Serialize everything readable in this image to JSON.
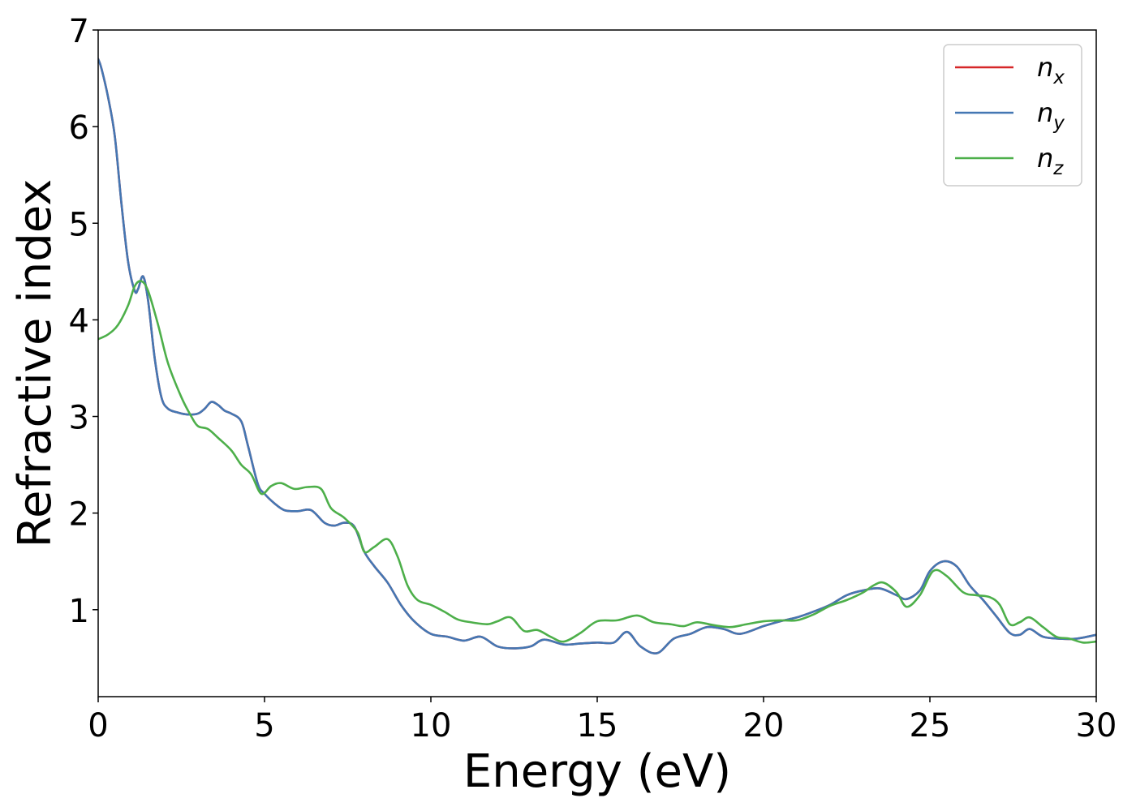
{
  "chart_data": {
    "type": "line",
    "xlabel": "Energy (eV)",
    "ylabel": "Refractive index",
    "xlim": [
      0,
      30
    ],
    "ylim": [
      0.1,
      7
    ],
    "xticks": [
      0,
      5,
      10,
      15,
      20,
      25,
      30
    ],
    "yticks": [
      1,
      2,
      3,
      4,
      5,
      6,
      7
    ],
    "grid": false,
    "legend_position": "top-right",
    "series": [
      {
        "name": "n_x",
        "label_base": "n",
        "label_sub": "x",
        "color": "#d62728",
        "x": [
          0,
          0.1,
          0.3,
          0.5,
          0.7,
          0.9,
          1.1,
          1.2,
          1.35,
          1.5,
          1.7,
          1.9,
          2.1,
          2.4,
          2.7,
          3.0,
          3.2,
          3.4,
          3.6,
          3.8,
          4.0,
          4.3,
          4.5,
          4.8,
          5.0,
          5.3,
          5.6,
          6.0,
          6.4,
          6.8,
          7.1,
          7.4,
          7.7,
          8.0,
          8.3,
          8.7,
          9.1,
          9.5,
          10.0,
          10.5,
          11.0,
          11.5,
          12.0,
          12.5,
          13.0,
          13.4,
          14.0,
          14.5,
          15.0,
          15.5,
          15.9,
          16.3,
          16.8,
          17.3,
          17.8,
          18.3,
          18.8,
          19.3,
          20.0,
          20.5,
          21.0,
          21.5,
          22.0,
          22.5,
          23.0,
          23.5,
          24.0,
          24.3,
          24.7,
          25.0,
          25.4,
          25.8,
          26.2,
          26.6,
          27.0,
          27.4,
          27.7,
          28.0,
          28.4,
          28.9,
          29.4,
          30.0
        ],
        "values": [
          6.7,
          6.6,
          6.3,
          5.9,
          5.2,
          4.6,
          4.3,
          4.32,
          4.45,
          4.2,
          3.6,
          3.2,
          3.08,
          3.04,
          3.02,
          3.03,
          3.08,
          3.15,
          3.12,
          3.06,
          3.03,
          2.95,
          2.7,
          2.3,
          2.2,
          2.1,
          2.03,
          2.02,
          2.03,
          1.9,
          1.87,
          1.9,
          1.86,
          1.6,
          1.45,
          1.28,
          1.05,
          0.88,
          0.75,
          0.72,
          0.68,
          0.72,
          0.62,
          0.6,
          0.62,
          0.69,
          0.64,
          0.65,
          0.66,
          0.66,
          0.77,
          0.62,
          0.55,
          0.7,
          0.75,
          0.82,
          0.8,
          0.75,
          0.83,
          0.88,
          0.92,
          0.98,
          1.05,
          1.15,
          1.2,
          1.22,
          1.15,
          1.11,
          1.2,
          1.4,
          1.5,
          1.45,
          1.25,
          1.1,
          0.93,
          0.76,
          0.74,
          0.8,
          0.72,
          0.7,
          0.7,
          0.74
        ]
      },
      {
        "name": "n_y",
        "label_base": "n",
        "label_sub": "y",
        "color": "#4477b3",
        "x": [
          0,
          0.1,
          0.3,
          0.5,
          0.7,
          0.9,
          1.1,
          1.2,
          1.35,
          1.5,
          1.7,
          1.9,
          2.1,
          2.4,
          2.7,
          3.0,
          3.2,
          3.4,
          3.6,
          3.8,
          4.0,
          4.3,
          4.5,
          4.8,
          5.0,
          5.3,
          5.6,
          6.0,
          6.4,
          6.8,
          7.1,
          7.4,
          7.7,
          8.0,
          8.3,
          8.7,
          9.1,
          9.5,
          10.0,
          10.5,
          11.0,
          11.5,
          12.0,
          12.5,
          13.0,
          13.4,
          14.0,
          14.5,
          15.0,
          15.5,
          15.9,
          16.3,
          16.8,
          17.3,
          17.8,
          18.3,
          18.8,
          19.3,
          20.0,
          20.5,
          21.0,
          21.5,
          22.0,
          22.5,
          23.0,
          23.5,
          24.0,
          24.3,
          24.7,
          25.0,
          25.4,
          25.8,
          26.2,
          26.6,
          27.0,
          27.4,
          27.7,
          28.0,
          28.4,
          28.9,
          29.4,
          30.0
        ],
        "values": [
          6.7,
          6.6,
          6.3,
          5.9,
          5.2,
          4.6,
          4.3,
          4.32,
          4.45,
          4.2,
          3.6,
          3.2,
          3.08,
          3.04,
          3.02,
          3.03,
          3.08,
          3.15,
          3.12,
          3.06,
          3.03,
          2.95,
          2.7,
          2.3,
          2.2,
          2.1,
          2.03,
          2.02,
          2.03,
          1.9,
          1.87,
          1.9,
          1.86,
          1.6,
          1.45,
          1.28,
          1.05,
          0.88,
          0.75,
          0.72,
          0.68,
          0.72,
          0.62,
          0.6,
          0.62,
          0.69,
          0.64,
          0.65,
          0.66,
          0.66,
          0.77,
          0.62,
          0.55,
          0.7,
          0.75,
          0.82,
          0.8,
          0.75,
          0.83,
          0.88,
          0.92,
          0.98,
          1.05,
          1.15,
          1.2,
          1.22,
          1.15,
          1.11,
          1.2,
          1.4,
          1.5,
          1.45,
          1.25,
          1.1,
          0.93,
          0.76,
          0.74,
          0.8,
          0.72,
          0.7,
          0.7,
          0.74
        ]
      },
      {
        "name": "n_z",
        "label_base": "n",
        "label_sub": "z",
        "color": "#4daf4a",
        "x": [
          0,
          0.3,
          0.6,
          0.9,
          1.1,
          1.3,
          1.5,
          1.8,
          2.1,
          2.5,
          2.8,
          3.0,
          3.3,
          3.6,
          4.0,
          4.3,
          4.6,
          4.9,
          5.2,
          5.5,
          5.9,
          6.3,
          6.7,
          7.0,
          7.4,
          7.8,
          8.0,
          8.3,
          8.7,
          9.0,
          9.3,
          9.6,
          10.0,
          10.4,
          10.8,
          11.2,
          11.7,
          12.0,
          12.4,
          12.8,
          13.2,
          13.6,
          14.0,
          14.5,
          15.0,
          15.6,
          16.2,
          16.7,
          17.2,
          17.6,
          18.0,
          18.5,
          19.0,
          19.5,
          20.0,
          20.5,
          21.0,
          21.5,
          22.0,
          22.5,
          23.0,
          23.3,
          23.6,
          24.0,
          24.3,
          24.7,
          25.1,
          25.5,
          26.0,
          26.4,
          26.8,
          27.1,
          27.4,
          27.7,
          28.0,
          28.4,
          28.8,
          29.2,
          29.6,
          30.0
        ],
        "values": [
          3.8,
          3.85,
          3.95,
          4.15,
          4.35,
          4.4,
          4.3,
          3.95,
          3.55,
          3.2,
          3.0,
          2.9,
          2.87,
          2.78,
          2.65,
          2.5,
          2.4,
          2.2,
          2.28,
          2.31,
          2.25,
          2.27,
          2.25,
          2.05,
          1.95,
          1.8,
          1.6,
          1.65,
          1.73,
          1.55,
          1.25,
          1.1,
          1.05,
          0.98,
          0.9,
          0.87,
          0.85,
          0.88,
          0.92,
          0.78,
          0.79,
          0.72,
          0.67,
          0.76,
          0.88,
          0.89,
          0.94,
          0.87,
          0.85,
          0.83,
          0.87,
          0.84,
          0.82,
          0.85,
          0.88,
          0.89,
          0.89,
          0.95,
          1.04,
          1.1,
          1.18,
          1.25,
          1.28,
          1.18,
          1.03,
          1.15,
          1.4,
          1.35,
          1.18,
          1.15,
          1.13,
          1.05,
          0.85,
          0.87,
          0.92,
          0.82,
          0.72,
          0.7,
          0.66,
          0.67
        ]
      }
    ]
  }
}
